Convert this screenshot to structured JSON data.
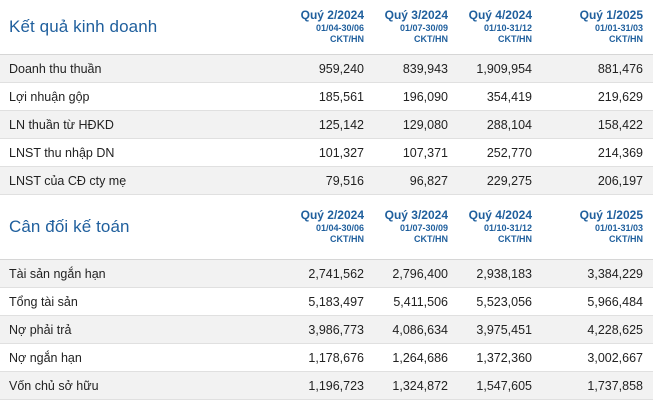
{
  "periods": [
    {
      "name": "Quý 2/2024",
      "range": "01/04-30/06",
      "unit": "CKT/HN"
    },
    {
      "name": "Quý 3/2024",
      "range": "01/07-30/09",
      "unit": "CKT/HN"
    },
    {
      "name": "Quý 4/2024",
      "range": "01/10-31/12",
      "unit": "CKT/HN"
    },
    {
      "name": "Quý 1/2025",
      "range": "01/01-31/03",
      "unit": "CKT/HN"
    }
  ],
  "income": {
    "title": "Kết quả kinh doanh",
    "rows": [
      {
        "label": "Doanh thu thuần",
        "values": [
          "959,240",
          "839,943",
          "1,909,954",
          "881,476"
        ]
      },
      {
        "label": "Lợi nhuận gộp",
        "values": [
          "185,561",
          "196,090",
          "354,419",
          "219,629"
        ]
      },
      {
        "label": "LN thuần từ HĐKD",
        "values": [
          "125,142",
          "129,080",
          "288,104",
          "158,422"
        ]
      },
      {
        "label": "LNST thu nhập DN",
        "values": [
          "101,327",
          "107,371",
          "252,770",
          "214,369"
        ]
      },
      {
        "label": "LNST của CĐ cty mẹ",
        "values": [
          "79,516",
          "96,827",
          "229,275",
          "206,197"
        ]
      }
    ]
  },
  "balance": {
    "title": "Cân đối kế toán",
    "rows": [
      {
        "label": "Tài sản ngắn hạn",
        "values": [
          "2,741,562",
          "2,796,400",
          "2,938,183",
          "3,384,229"
        ]
      },
      {
        "label": "Tổng tài sản",
        "values": [
          "5,183,497",
          "5,411,506",
          "5,523,056",
          "5,966,484"
        ]
      },
      {
        "label": "Nợ phải trả",
        "values": [
          "3,986,773",
          "4,086,634",
          "3,975,451",
          "4,228,625"
        ]
      },
      {
        "label": "Nợ ngắn hạn",
        "values": [
          "1,178,676",
          "1,264,686",
          "1,372,360",
          "3,002,667"
        ]
      },
      {
        "label": "Vốn chủ sở hữu",
        "values": [
          "1,196,723",
          "1,324,872",
          "1,547,605",
          "1,737,858"
        ]
      }
    ]
  },
  "colors": {
    "accent": "#1f5f9d",
    "row_shade": "#f2f2f2",
    "divider": "#e0e0e0"
  }
}
